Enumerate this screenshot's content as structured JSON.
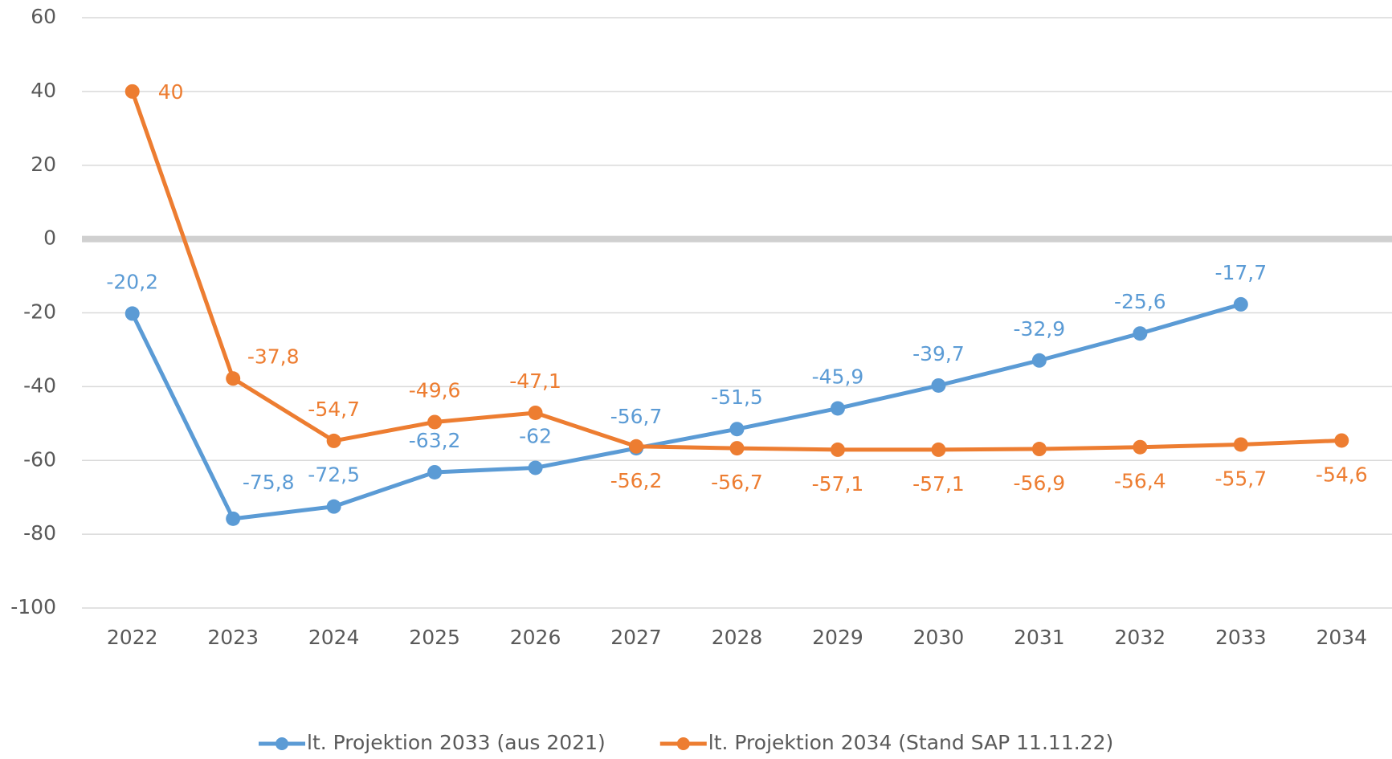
{
  "chart_data": {
    "type": "line",
    "categories": [
      "2022",
      "2023",
      "2024",
      "2025",
      "2026",
      "2027",
      "2028",
      "2029",
      "2030",
      "2031",
      "2032",
      "2033",
      "2034"
    ],
    "series": [
      {
        "name": "lt. Projektion 2033 (aus 2021)",
        "color": "#5b9bd5",
        "values": [
          -20.2,
          -75.8,
          -72.5,
          -63.2,
          -62,
          -56.7,
          -51.5,
          -45.9,
          -39.7,
          -32.9,
          -25.6,
          -17.7,
          null
        ],
        "value_labels": [
          "-20,2",
          "-75,8",
          "-72,5",
          "-63,2",
          "-62",
          "-56,7",
          "-51,5",
          "-45,9",
          "-39,7",
          "-32,9",
          "-25,6",
          "-17,7",
          null
        ]
      },
      {
        "name": "lt. Projektion 2034 (Stand SAP 11.11.22)",
        "color": "#ed7d31",
        "values": [
          40,
          -37.8,
          -54.7,
          -49.6,
          -47.1,
          -56.2,
          -56.7,
          -57.1,
          -57.1,
          -56.9,
          -56.4,
          -55.7,
          -54.6
        ],
        "value_labels": [
          "40",
          "-37,8",
          "-54,7",
          "-49,6",
          "-47,1",
          "-56,2",
          "-56,7",
          "-57,1",
          "-57,1",
          "-56,9",
          "-56,4",
          "-55,7",
          "-54,6"
        ]
      }
    ],
    "ylim": [
      -100,
      60
    ],
    "yticks": [
      -100,
      -80,
      -60,
      -40,
      -20,
      0,
      20,
      40,
      60
    ],
    "grid": true,
    "legend": "bottom"
  }
}
